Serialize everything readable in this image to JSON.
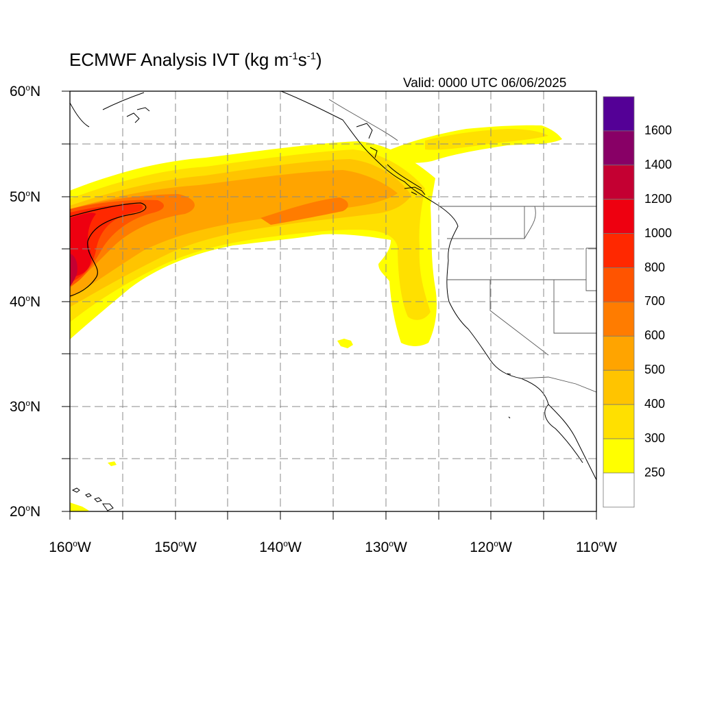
{
  "title": {
    "text": "ECMWF Analysis IVT (kg m",
    "sup1": "-1",
    "mid": "s",
    "sup2": "-1",
    "end": ")"
  },
  "valid_text": "Valid: 0000 UTC 06/06/2025",
  "lat_labels": [
    {
      "deg": "60",
      "hem": "N"
    },
    {
      "deg": "50",
      "hem": "N"
    },
    {
      "deg": "40",
      "hem": "N"
    },
    {
      "deg": "30",
      "hem": "N"
    },
    {
      "deg": "20",
      "hem": "N"
    }
  ],
  "lon_labels": [
    {
      "deg": "160",
      "hem": "W"
    },
    {
      "deg": "150",
      "hem": "W"
    },
    {
      "deg": "140",
      "hem": "W"
    },
    {
      "deg": "130",
      "hem": "W"
    },
    {
      "deg": "120",
      "hem": "W"
    },
    {
      "deg": "110",
      "hem": "W"
    }
  ],
  "map": {
    "lon_range": [
      -160,
      -110
    ],
    "lat_range": [
      20,
      60
    ],
    "grid_lons": [
      -155,
      -150,
      -145,
      -140,
      -135,
      -130,
      -125,
      -120,
      -115
    ],
    "grid_lats": [
      25,
      30,
      35,
      40,
      45,
      50,
      55
    ]
  },
  "colorbar": {
    "labels": [
      "1600",
      "1400",
      "1200",
      "1000",
      "800",
      "700",
      "600",
      "500",
      "400",
      "300",
      "250"
    ],
    "colors": [
      "#540096",
      "#880066",
      "#c40032",
      "#ee0010",
      "#ff2800",
      "#ff5400",
      "#ff7c00",
      "#ffa400",
      "#ffc400",
      "#ffe000",
      "#ffff00",
      "#ffffff"
    ]
  }
}
